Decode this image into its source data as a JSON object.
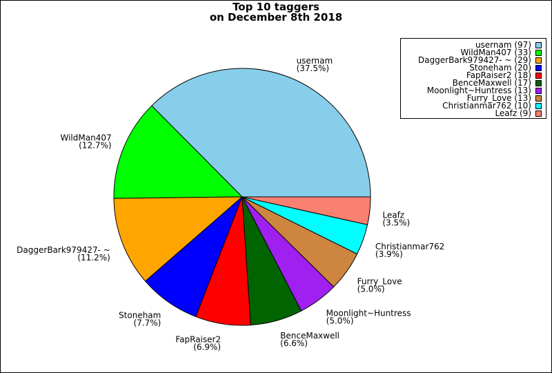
{
  "chart_data": {
    "type": "pie",
    "title_lines": [
      "Top 10 taggers",
      "on December 8th 2018"
    ],
    "slices": [
      {
        "name": "usernam",
        "value": 97,
        "percent": "(37.5%)",
        "legend": "usernam (97)",
        "color": "#87ceeb"
      },
      {
        "name": "WildMan407",
        "value": 33,
        "percent": "(12.7%)",
        "legend": "WildMan407 (33)",
        "color": "#00ff00"
      },
      {
        "name": "DaggerBark979427- ~",
        "value": 29,
        "percent": "(11.2%)",
        "legend": "DaggerBark979427- ~ (29)",
        "color": "#ffa500"
      },
      {
        "name": "Stoneham",
        "value": 20,
        "percent": "(7.7%)",
        "legend": "Stoneham (20)",
        "color": "#0000ff"
      },
      {
        "name": "FapRaiser2",
        "value": 18,
        "percent": "(6.9%)",
        "legend": "FapRaiser2 (18)",
        "color": "#ff0000"
      },
      {
        "name": "BenceMaxwell",
        "value": 17,
        "percent": "(6.6%)",
        "legend": "BenceMaxwell (17)",
        "color": "#006400"
      },
      {
        "name": "Moonlight~Huntress",
        "value": 13,
        "percent": "(5.0%)",
        "legend": "Moonlight~Huntress (13)",
        "color": "#a020f0"
      },
      {
        "name": "Furry_Love",
        "value": 13,
        "percent": "(5.0%)",
        "legend": "Furry_Love (13)",
        "color": "#cd853f"
      },
      {
        "name": "Christianmar762",
        "value": 10,
        "percent": "(3.9%)",
        "legend": "Christianmar762 (10)",
        "color": "#00ffff"
      },
      {
        "name": "Leafz",
        "value": 9,
        "percent": "(3.5%)",
        "legend": "Leafz (9)",
        "color": "#fa8072"
      }
    ],
    "legend_position": "top-right"
  }
}
